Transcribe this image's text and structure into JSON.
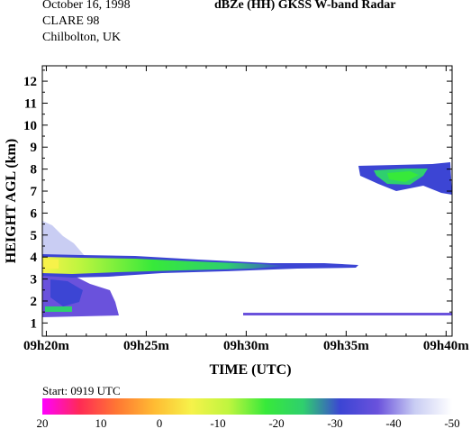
{
  "header": {
    "date": "October 16, 1998",
    "campaign": "CLARE 98",
    "site": "Chilbolton, UK",
    "title": "dBZe (HH)   GKSS  W-band Radar"
  },
  "chart_data": {
    "type": "heatmap",
    "title": "dBZe (HH)   GKSS  W-band Radar",
    "xlabel": "TIME (UTC)",
    "ylabel": "HEIGHT AGL (km)",
    "start_label": "Start: 0919 UTC",
    "x_ticks": [
      "09h20m",
      "09h25m",
      "09h30m",
      "09h35m",
      "09h40m"
    ],
    "x_tick_minutes": [
      20,
      25,
      30,
      35,
      40
    ],
    "xlim_minutes": [
      19.8,
      40.3
    ],
    "y_ticks": [
      1,
      2,
      3,
      4,
      5,
      6,
      7,
      8,
      9,
      10,
      11,
      12
    ],
    "ylim_km": [
      0.4,
      12.7
    ],
    "colorbar": {
      "ticks": [
        "20",
        "10",
        "0",
        "-10",
        "-20",
        "-30",
        "-40",
        "-50"
      ],
      "range_dbz": [
        20,
        -50
      ],
      "colors": [
        "#ff00ff",
        "#ff2a55",
        "#ff7733",
        "#ffbb33",
        "#f6f24a",
        "#bff53f",
        "#37e93a",
        "#2fcf6e",
        "#3c45d4",
        "#6a52dc",
        "#c9cdf3",
        "#ffffff"
      ]
    },
    "echoes": [
      {
        "name": "upper cloud band",
        "t_start": 35.3,
        "t_end": 40.3,
        "h_min": 6.6,
        "h_max": 8.1,
        "dbz_max": -22
      },
      {
        "name": "low cloud base (~3 km)",
        "t_start": 19.8,
        "t_end": 35.4,
        "h_min": 2.6,
        "h_max": 3.6,
        "dbz_max": -15
      },
      {
        "name": "precipitation below cloud",
        "t_start": 19.8,
        "t_end": 23.8,
        "h_min": 0.9,
        "h_max": 5.2,
        "dbz_max": -25
      },
      {
        "name": "near-surface echo (~1 km)",
        "t_start": 29.5,
        "t_end": 40.3,
        "h_min": 0.8,
        "h_max": 1.1,
        "dbz_max": -30
      }
    ]
  }
}
